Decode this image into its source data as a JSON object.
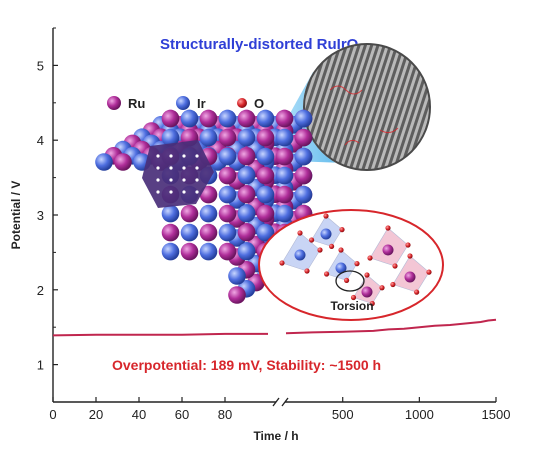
{
  "chart_data": {
    "type": "line",
    "title": "Structurally-distorted RuIrO",
    "title_subscript": "x",
    "xlabel": "Time / h",
    "ylabel": "Potential / V",
    "ylim": [
      0.5,
      5.5
    ],
    "y_ticks": [
      "1",
      "2",
      "3",
      "4",
      "5"
    ],
    "x_axis_broken": true,
    "x_segment_1": {
      "range": [
        0,
        100
      ],
      "ticks": [
        "0",
        "20",
        "40",
        "60",
        "80"
      ]
    },
    "x_segment_2": {
      "range": [
        130,
        1500
      ],
      "ticks": [
        "500",
        "1000",
        "1500"
      ]
    },
    "series": [
      {
        "color": "#c0264e",
        "x": [
          0,
          20,
          40,
          60,
          80,
          100,
          130,
          300,
          500,
          700,
          800,
          900,
          1000,
          1100,
          1200,
          1300,
          1400,
          1450,
          1500
        ],
        "y": [
          1.39,
          1.4,
          1.4,
          1.4,
          1.41,
          1.41,
          1.42,
          1.43,
          1.44,
          1.45,
          1.47,
          1.48,
          1.5,
          1.52,
          1.53,
          1.55,
          1.57,
          1.59,
          1.6
        ]
      }
    ],
    "annotations": {
      "summary": "Overpotential: 189 mV,  Stability: ~1500 h",
      "torsion_label": "Torsion"
    },
    "legend": {
      "placement": "upper-left",
      "entries": [
        {
          "label": "Ru",
          "color": "#b02e9a"
        },
        {
          "label": "Ir",
          "color": "#4f6fe0"
        },
        {
          "label": "O",
          "color": "#d7262b"
        }
      ]
    },
    "grid": false
  }
}
